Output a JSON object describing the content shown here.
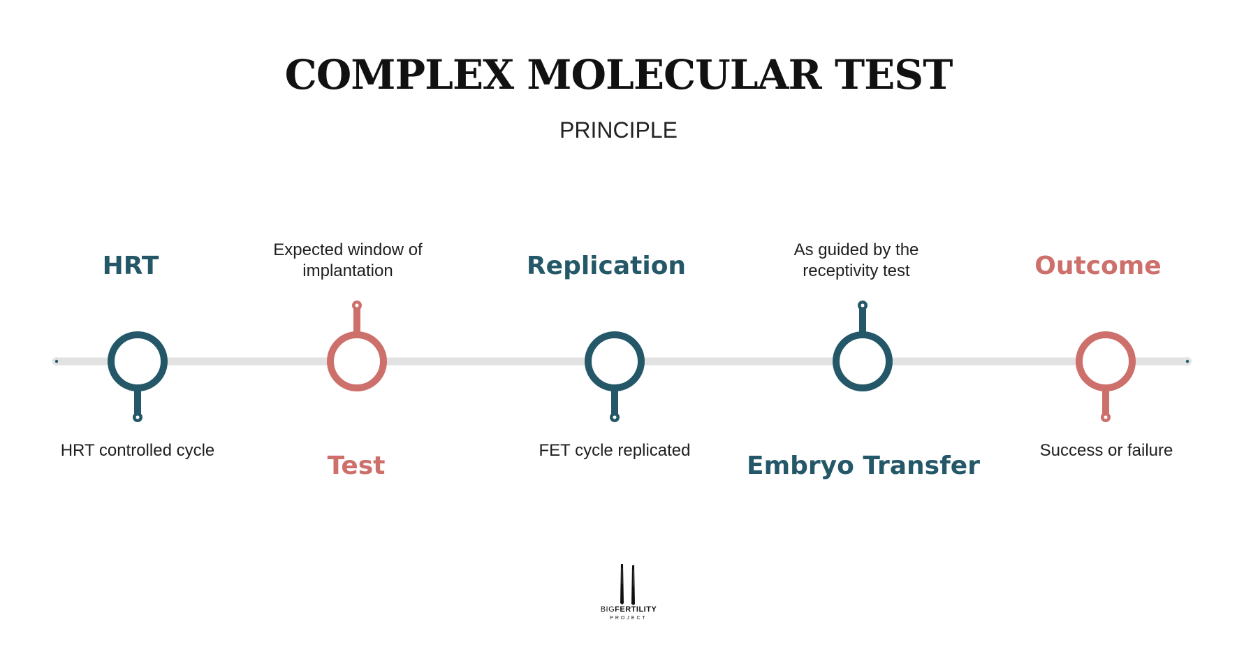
{
  "title": "COMPLEX MOLECULAR TEST",
  "subtitle": "PRINCIPLE",
  "colors": {
    "teal": "#245868",
    "coral": "#CD6F6A",
    "track": "#E2E2E2"
  },
  "steps": [
    {
      "heading": "HRT",
      "description": "HRT controlled cycle",
      "color": "teal",
      "heading_side": "above"
    },
    {
      "heading": "Test",
      "description": "Expected window of implantation",
      "color": "coral",
      "heading_side": "below"
    },
    {
      "heading": "Replication",
      "description": "FET cycle replicated",
      "color": "teal",
      "heading_side": "above"
    },
    {
      "heading": "Embryo Transfer",
      "description": "As guided by the receptivity test",
      "color": "teal",
      "heading_side": "below"
    },
    {
      "heading": "Outcome",
      "description": "Success or failure",
      "color": "coral",
      "heading_side": "above"
    }
  ],
  "logo": {
    "brand_light": "BIG",
    "brand_bold": "FERTILITY",
    "sub": "PROJECT"
  }
}
